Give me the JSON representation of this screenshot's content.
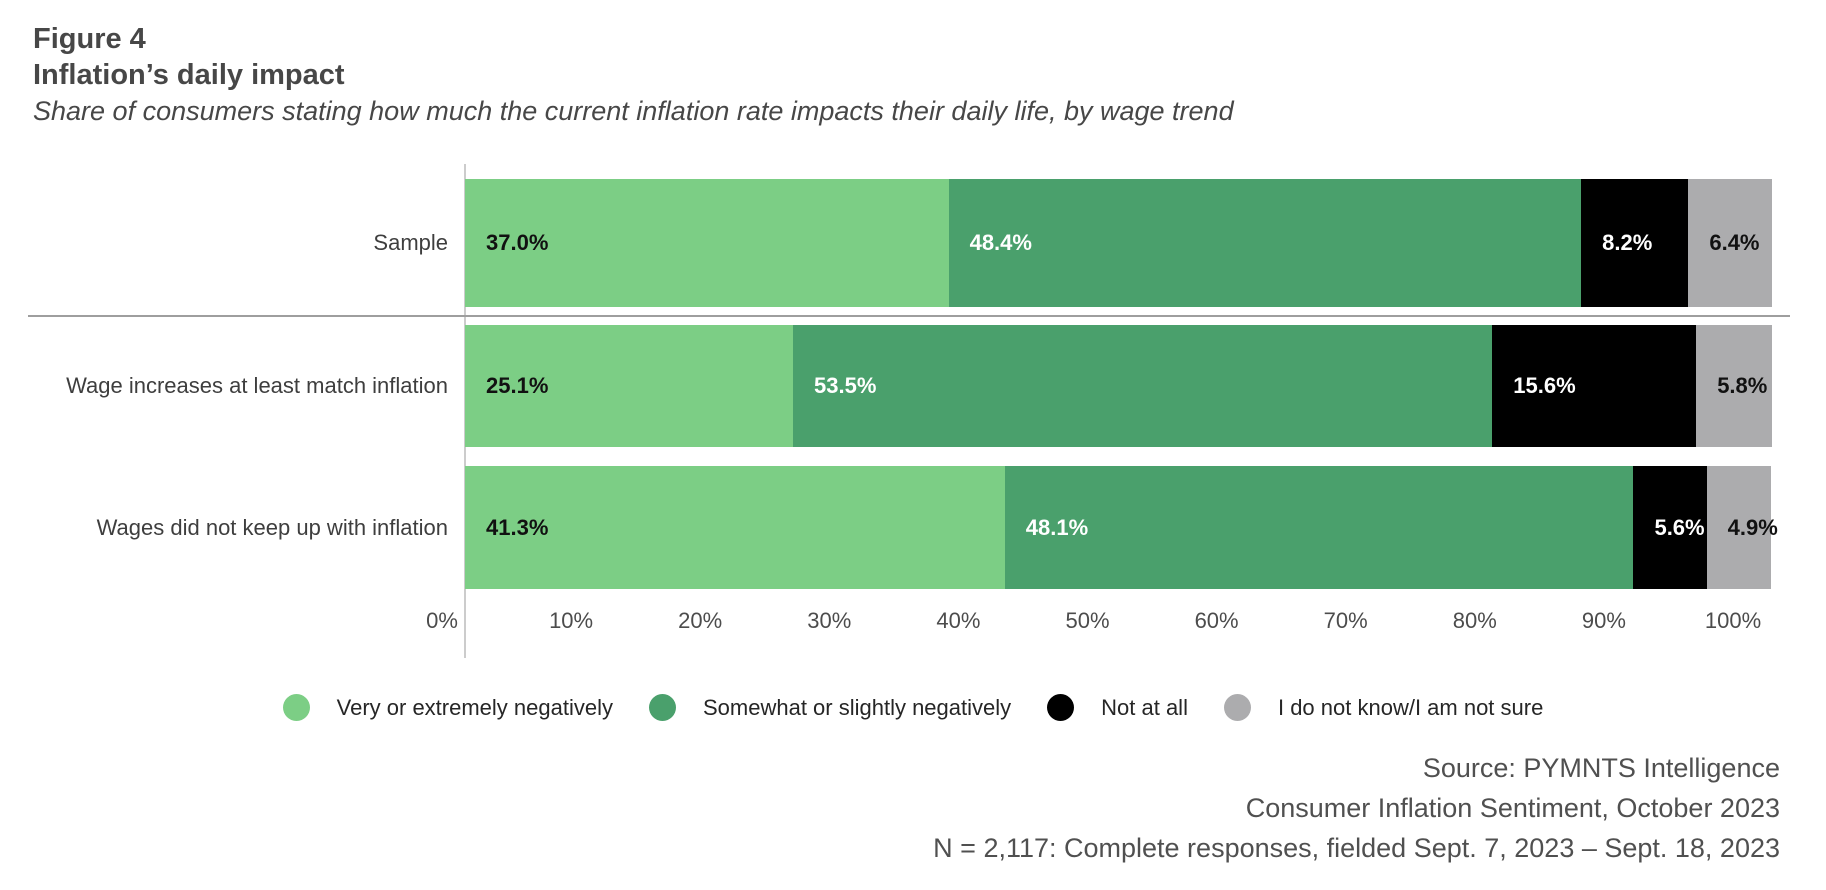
{
  "figure": {
    "label": "Figure 4",
    "title": "Inflation’s daily impact",
    "subtitle": "Share of consumers stating how much the current inflation rate impacts their daily life, by wage trend"
  },
  "chart_data": {
    "type": "bar",
    "orientation": "horizontal",
    "stacked": true,
    "unit": "%",
    "xlim": [
      0,
      100
    ],
    "grid": false,
    "legend_position": "bottom",
    "x_ticks": [
      "0%",
      "10%",
      "20%",
      "30%",
      "40%",
      "50%",
      "60%",
      "70%",
      "80%",
      "90%",
      "100%"
    ],
    "categories": [
      "Sample",
      "Wage increases at least match inflation",
      "Wages did not keep up with inflation"
    ],
    "series": [
      {
        "name": "Very or extremely negatively",
        "color": "#7cce85",
        "value_label_color": "#111111",
        "values": [
          37.0,
          25.1,
          41.3
        ]
      },
      {
        "name": "Somewhat or slightly negatively",
        "color": "#4aa06c",
        "value_label_color": "#ffffff",
        "values": [
          48.4,
          53.5,
          48.1
        ]
      },
      {
        "name": "Not at all",
        "color": "#000000",
        "value_label_color": "#ffffff",
        "values": [
          8.2,
          15.6,
          5.6
        ]
      },
      {
        "name": "I do not know/I am not sure",
        "color": "#acacae",
        "value_label_color": "#111111",
        "values": [
          6.4,
          5.8,
          4.9
        ]
      }
    ]
  },
  "source": {
    "lines": [
      "Source: PYMNTS Intelligence",
      "Consumer Inflation Sentiment, October 2023",
      "N = 2,117: Complete responses, fielded Sept. 7, 2023 – Sept. 18, 2023"
    ]
  }
}
